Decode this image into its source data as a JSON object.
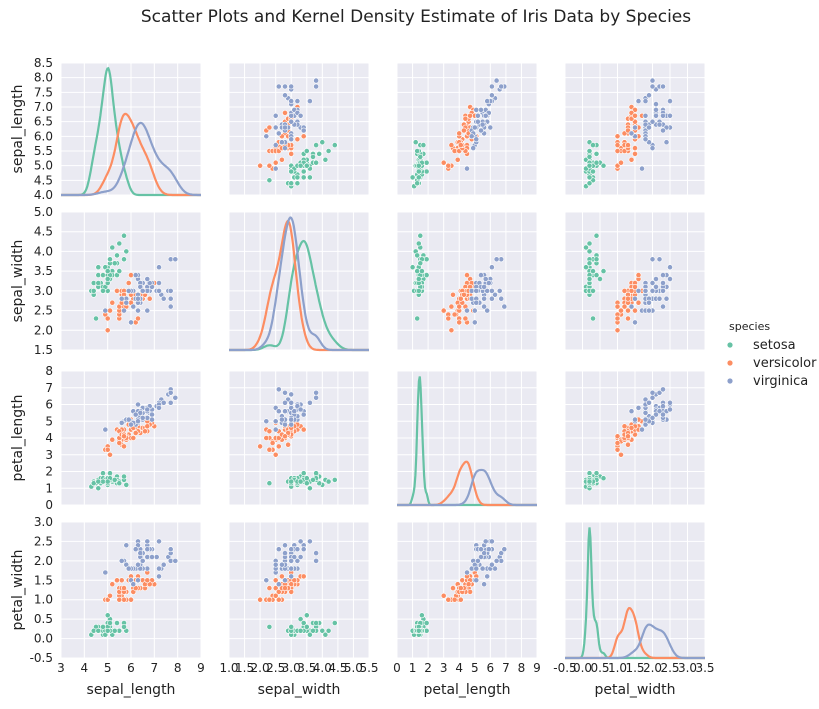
{
  "chart_data": {
    "type": "scatter",
    "title": "Scatter Plots and Kernel Density Estimate of Iris Data by Species",
    "variables": [
      {
        "key": "sepal_length",
        "label": "sepal_length",
        "lim": [
          3,
          9
        ],
        "x_ticks": [
          "3",
          "4",
          "5",
          "6",
          "7",
          "8",
          "9"
        ],
        "y_ticks": [
          "4.0",
          "4.5",
          "5.0",
          "5.5",
          "6.0",
          "6.5",
          "7.0",
          "7.5",
          "8.0",
          "8.5"
        ],
        "y_lim": [
          4.0,
          8.5
        ]
      },
      {
        "key": "sepal_width",
        "label": "sepal_width",
        "lim": [
          1.0,
          5.5
        ],
        "x_ticks": [
          "1.0",
          "1.5",
          "2.0",
          "2.5",
          "3.0",
          "3.5",
          "4.0",
          "4.5",
          "5.0",
          "5.5"
        ],
        "y_ticks": [
          "1.5",
          "2.0",
          "2.5",
          "3.0",
          "3.5",
          "4.0",
          "4.5",
          "5.0"
        ],
        "y_lim": [
          1.5,
          5.0
        ]
      },
      {
        "key": "petal_length",
        "label": "petal_length",
        "lim": [
          0,
          9
        ],
        "x_ticks": [
          "0",
          "1",
          "2",
          "3",
          "4",
          "5",
          "6",
          "7",
          "8",
          "9"
        ],
        "y_ticks": [
          "0",
          "1",
          "2",
          "3",
          "4",
          "5",
          "6",
          "7",
          "8"
        ],
        "y_lim": [
          0,
          8
        ]
      },
      {
        "key": "petal_width",
        "label": "petal_width",
        "lim": [
          -0.5,
          3.5
        ],
        "x_ticks": [
          "-0.5",
          "0.0",
          "0.5",
          "1.0",
          "1.5",
          "2.0",
          "2.5",
          "3.0",
          "3.5"
        ],
        "y_ticks": [
          "-0.5",
          "0.0",
          "0.5",
          "1.0",
          "1.5",
          "2.0",
          "2.5",
          "3.0"
        ],
        "y_lim": [
          -0.5,
          3.0
        ]
      }
    ],
    "legend": {
      "title": "species",
      "position": "right"
    },
    "grid": true,
    "series": [
      {
        "name": "setosa",
        "color": "#66c2a5",
        "points": [
          [
            5.1,
            3.5,
            1.4,
            0.2
          ],
          [
            4.9,
            3.0,
            1.4,
            0.2
          ],
          [
            4.7,
            3.2,
            1.3,
            0.2
          ],
          [
            4.6,
            3.1,
            1.5,
            0.2
          ],
          [
            5.0,
            3.6,
            1.4,
            0.2
          ],
          [
            5.4,
            3.9,
            1.7,
            0.4
          ],
          [
            4.6,
            3.4,
            1.4,
            0.3
          ],
          [
            5.0,
            3.4,
            1.5,
            0.2
          ],
          [
            4.4,
            2.9,
            1.4,
            0.2
          ],
          [
            4.9,
            3.1,
            1.5,
            0.1
          ],
          [
            5.4,
            3.7,
            1.5,
            0.2
          ],
          [
            4.8,
            3.4,
            1.6,
            0.2
          ],
          [
            4.8,
            3.0,
            1.4,
            0.1
          ],
          [
            4.3,
            3.0,
            1.1,
            0.1
          ],
          [
            5.8,
            4.0,
            1.2,
            0.2
          ],
          [
            5.7,
            4.4,
            1.5,
            0.4
          ],
          [
            5.4,
            3.9,
            1.3,
            0.4
          ],
          [
            5.1,
            3.5,
            1.4,
            0.3
          ],
          [
            5.7,
            3.8,
            1.7,
            0.3
          ],
          [
            5.1,
            3.8,
            1.5,
            0.3
          ],
          [
            5.4,
            3.4,
            1.7,
            0.2
          ],
          [
            5.1,
            3.7,
            1.5,
            0.4
          ],
          [
            4.6,
            3.6,
            1.0,
            0.2
          ],
          [
            5.1,
            3.3,
            1.7,
            0.5
          ],
          [
            4.8,
            3.4,
            1.9,
            0.2
          ],
          [
            5.0,
            3.0,
            1.6,
            0.2
          ],
          [
            5.0,
            3.4,
            1.6,
            0.4
          ],
          [
            5.2,
            3.5,
            1.5,
            0.2
          ],
          [
            5.2,
            3.4,
            1.4,
            0.2
          ],
          [
            4.7,
            3.2,
            1.6,
            0.2
          ],
          [
            4.8,
            3.1,
            1.6,
            0.2
          ],
          [
            5.4,
            3.4,
            1.5,
            0.4
          ],
          [
            5.2,
            4.1,
            1.5,
            0.1
          ],
          [
            5.5,
            4.2,
            1.4,
            0.2
          ],
          [
            4.9,
            3.1,
            1.5,
            0.2
          ],
          [
            5.0,
            3.2,
            1.2,
            0.2
          ],
          [
            5.5,
            3.5,
            1.3,
            0.2
          ],
          [
            4.9,
            3.6,
            1.4,
            0.1
          ],
          [
            4.4,
            3.0,
            1.3,
            0.2
          ],
          [
            5.1,
            3.4,
            1.5,
            0.2
          ],
          [
            5.0,
            3.5,
            1.3,
            0.3
          ],
          [
            4.5,
            2.3,
            1.3,
            0.3
          ],
          [
            4.4,
            3.2,
            1.3,
            0.2
          ],
          [
            5.0,
            3.5,
            1.6,
            0.6
          ],
          [
            5.1,
            3.8,
            1.9,
            0.4
          ],
          [
            4.8,
            3.0,
            1.4,
            0.3
          ],
          [
            5.1,
            3.8,
            1.6,
            0.2
          ],
          [
            4.6,
            3.2,
            1.4,
            0.2
          ],
          [
            5.3,
            3.7,
            1.5,
            0.2
          ],
          [
            5.0,
            3.3,
            1.4,
            0.2
          ]
        ]
      },
      {
        "name": "versicolor",
        "color": "#fc8d62",
        "points": [
          [
            7.0,
            3.2,
            4.7,
            1.4
          ],
          [
            6.4,
            3.2,
            4.5,
            1.5
          ],
          [
            6.9,
            3.1,
            4.9,
            1.5
          ],
          [
            5.5,
            2.3,
            4.0,
            1.3
          ],
          [
            6.5,
            2.8,
            4.6,
            1.5
          ],
          [
            5.7,
            2.8,
            4.5,
            1.3
          ],
          [
            6.3,
            3.3,
            4.7,
            1.6
          ],
          [
            4.9,
            2.4,
            3.3,
            1.0
          ],
          [
            6.6,
            2.9,
            4.6,
            1.3
          ],
          [
            5.2,
            2.7,
            3.9,
            1.4
          ],
          [
            5.0,
            2.0,
            3.5,
            1.0
          ],
          [
            5.9,
            3.0,
            4.2,
            1.5
          ],
          [
            6.0,
            2.2,
            4.0,
            1.0
          ],
          [
            6.1,
            2.9,
            4.7,
            1.4
          ],
          [
            5.6,
            2.9,
            3.6,
            1.3
          ],
          [
            6.7,
            3.1,
            4.4,
            1.4
          ],
          [
            5.6,
            3.0,
            4.5,
            1.5
          ],
          [
            5.8,
            2.7,
            4.1,
            1.0
          ],
          [
            6.2,
            2.2,
            4.5,
            1.5
          ],
          [
            5.6,
            2.5,
            3.9,
            1.1
          ],
          [
            5.9,
            3.2,
            4.8,
            1.8
          ],
          [
            6.1,
            2.8,
            4.0,
            1.3
          ],
          [
            6.3,
            2.5,
            4.9,
            1.5
          ],
          [
            6.1,
            2.8,
            4.7,
            1.2
          ],
          [
            6.4,
            2.9,
            4.3,
            1.3
          ],
          [
            6.6,
            3.0,
            4.4,
            1.4
          ],
          [
            6.8,
            2.8,
            4.8,
            1.4
          ],
          [
            6.7,
            3.0,
            5.0,
            1.7
          ],
          [
            6.0,
            2.9,
            4.5,
            1.5
          ],
          [
            5.7,
            2.6,
            3.5,
            1.0
          ],
          [
            5.5,
            2.4,
            3.8,
            1.1
          ],
          [
            5.5,
            2.4,
            3.7,
            1.0
          ],
          [
            5.8,
            2.7,
            3.9,
            1.2
          ],
          [
            6.0,
            2.7,
            5.1,
            1.6
          ],
          [
            5.4,
            3.0,
            4.5,
            1.5
          ],
          [
            6.0,
            3.4,
            4.5,
            1.6
          ],
          [
            6.7,
            3.1,
            4.7,
            1.5
          ],
          [
            6.3,
            2.3,
            4.4,
            1.3
          ],
          [
            5.6,
            3.0,
            4.1,
            1.3
          ],
          [
            5.5,
            2.5,
            4.0,
            1.3
          ],
          [
            5.5,
            2.6,
            4.4,
            1.2
          ],
          [
            6.1,
            3.0,
            4.6,
            1.4
          ],
          [
            5.8,
            2.6,
            4.0,
            1.2
          ],
          [
            5.0,
            2.3,
            3.3,
            1.0
          ],
          [
            5.6,
            2.7,
            4.2,
            1.3
          ],
          [
            5.7,
            3.0,
            4.2,
            1.2
          ],
          [
            5.7,
            2.9,
            4.2,
            1.3
          ],
          [
            6.2,
            2.9,
            4.3,
            1.3
          ],
          [
            5.1,
            2.5,
            3.0,
            1.1
          ],
          [
            5.7,
            2.8,
            4.1,
            1.3
          ]
        ]
      },
      {
        "name": "virginica",
        "color": "#8da0cb",
        "points": [
          [
            6.3,
            3.3,
            6.0,
            2.5
          ],
          [
            5.8,
            2.7,
            5.1,
            1.9
          ],
          [
            7.1,
            3.0,
            5.9,
            2.1
          ],
          [
            6.3,
            2.9,
            5.6,
            1.8
          ],
          [
            6.5,
            3.0,
            5.8,
            2.2
          ],
          [
            7.6,
            3.0,
            6.6,
            2.1
          ],
          [
            4.9,
            2.5,
            4.5,
            1.7
          ],
          [
            7.3,
            2.9,
            6.3,
            1.8
          ],
          [
            6.7,
            2.5,
            5.8,
            1.8
          ],
          [
            7.2,
            3.6,
            6.1,
            2.5
          ],
          [
            6.5,
            3.2,
            5.1,
            2.0
          ],
          [
            6.4,
            2.7,
            5.3,
            1.9
          ],
          [
            6.8,
            3.0,
            5.5,
            2.1
          ],
          [
            5.7,
            2.5,
            5.0,
            2.0
          ],
          [
            5.8,
            2.8,
            5.1,
            2.4
          ],
          [
            6.4,
            3.2,
            5.3,
            2.3
          ],
          [
            6.5,
            3.0,
            5.5,
            1.8
          ],
          [
            7.7,
            3.8,
            6.7,
            2.2
          ],
          [
            7.7,
            2.6,
            6.9,
            2.3
          ],
          [
            6.0,
            2.2,
            5.0,
            1.5
          ],
          [
            6.9,
            3.2,
            5.7,
            2.3
          ],
          [
            5.6,
            2.8,
            4.9,
            2.0
          ],
          [
            7.7,
            2.8,
            6.7,
            2.0
          ],
          [
            6.3,
            2.7,
            4.9,
            1.8
          ],
          [
            6.7,
            3.3,
            5.7,
            2.1
          ],
          [
            7.2,
            3.2,
            6.0,
            1.8
          ],
          [
            6.2,
            2.8,
            4.8,
            1.8
          ],
          [
            6.1,
            3.0,
            4.9,
            1.8
          ],
          [
            6.4,
            2.8,
            5.6,
            2.1
          ],
          [
            7.2,
            3.0,
            5.8,
            1.6
          ],
          [
            7.4,
            2.8,
            6.1,
            1.9
          ],
          [
            7.9,
            3.8,
            6.4,
            2.0
          ],
          [
            6.4,
            2.8,
            5.6,
            2.2
          ],
          [
            6.3,
            2.8,
            5.1,
            1.5
          ],
          [
            6.1,
            2.6,
            5.6,
            1.4
          ],
          [
            7.7,
            3.0,
            6.1,
            2.3
          ],
          [
            6.3,
            3.4,
            5.6,
            2.4
          ],
          [
            6.4,
            3.1,
            5.5,
            1.8
          ],
          [
            6.0,
            3.0,
            4.8,
            1.8
          ],
          [
            6.9,
            3.1,
            5.4,
            2.1
          ],
          [
            6.7,
            3.1,
            5.6,
            2.4
          ],
          [
            6.9,
            3.1,
            5.1,
            2.3
          ],
          [
            5.8,
            2.7,
            5.1,
            1.9
          ],
          [
            6.8,
            3.2,
            5.9,
            2.3
          ],
          [
            6.7,
            3.3,
            5.7,
            2.5
          ],
          [
            6.7,
            3.0,
            5.2,
            2.3
          ],
          [
            6.3,
            2.5,
            5.0,
            1.9
          ],
          [
            6.5,
            3.0,
            5.2,
            2.0
          ],
          [
            6.2,
            3.4,
            5.4,
            2.3
          ],
          [
            5.9,
            3.0,
            5.1,
            1.8
          ]
        ]
      }
    ]
  }
}
